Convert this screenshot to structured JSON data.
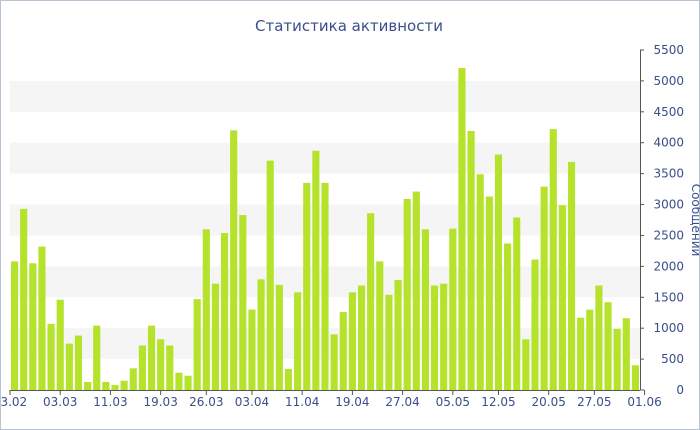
{
  "chart_data": {
    "type": "bar",
    "title": "Статистика активности",
    "ylabel": "Сообщений",
    "xlabel": "",
    "ylim": [
      0,
      5500
    ],
    "y_ticks": [
      0,
      500,
      1000,
      1500,
      2000,
      2500,
      3000,
      3500,
      4000,
      4500,
      5000,
      5500
    ],
    "x_tick_labels": [
      "23.02",
      "03.03",
      "11.03",
      "19.03",
      "26.03",
      "03.04",
      "11.04",
      "19.04",
      "27.04",
      "05.05",
      "12.05",
      "20.05",
      "27.05",
      "01.06"
    ],
    "x_tick_positions": [
      0,
      5.5,
      11,
      16.5,
      21.5,
      26.5,
      32,
      37.5,
      43,
      48.5,
      53.5,
      59,
      64,
      69.5
    ],
    "bar_color": "#b5e22b",
    "grid_band_color": "#f5f5f5",
    "values": [
      2080,
      2930,
      2050,
      2320,
      1070,
      1460,
      750,
      880,
      130,
      1040,
      130,
      80,
      150,
      350,
      720,
      1040,
      820,
      720,
      280,
      230,
      1470,
      2600,
      1720,
      2540,
      4200,
      2830,
      1300,
      1790,
      3710,
      1700,
      340,
      1580,
      3350,
      3870,
      3350,
      900,
      1260,
      1580,
      1690,
      2860,
      2080,
      1540,
      1780,
      3090,
      3210,
      2600,
      1690,
      1720,
      2610,
      5210,
      4190,
      3490,
      3130,
      3810,
      2370,
      2790,
      820,
      2110,
      3290,
      4220,
      2990,
      3690,
      1170,
      1300,
      1690,
      1420,
      990,
      1160,
      400
    ]
  }
}
